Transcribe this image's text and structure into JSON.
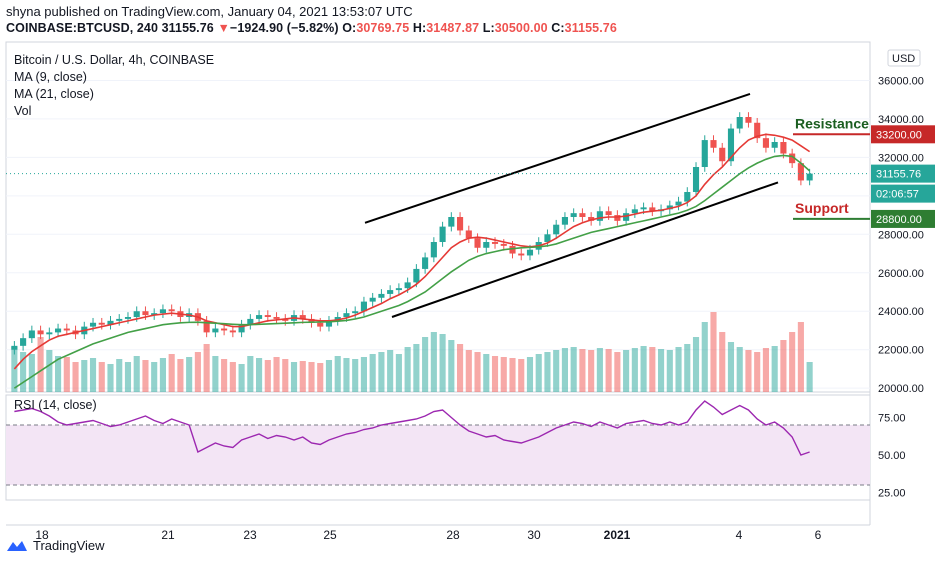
{
  "header": {
    "published": "shyna published on TradingView.com, January 04, 2021 13:53:07 UTC",
    "symbol": "COINBASE:BTCUSD, 240",
    "last": "31155.76",
    "change_arrow": "▼",
    "change": "−1924.90 (−5.82%)",
    "open_label": "O:",
    "open": "30769.75",
    "high_label": "H:",
    "high": "31487.87",
    "low_label": "L:",
    "low": "30500.00",
    "close_label": "C:",
    "close": "31155.76"
  },
  "legend": {
    "title": "Bitcoin / U.S. Dollar, 4h, COINBASE",
    "ma9": "MA (9, close)",
    "ma21": "MA (21, close)",
    "vol": "Vol",
    "rsi": "RSI (14, close)"
  },
  "footer": {
    "brand": "TradingView"
  },
  "colors": {
    "up": "#26a69a",
    "down": "#ef5350",
    "ma9": "#e53935",
    "ma21": "#43a047",
    "rsi": "#9c27b0",
    "rsi_band": "#f3e5f5",
    "annotation_resistance": "#c62828",
    "annotation_support": "#2e7d32"
  },
  "chart_data": [
    {
      "type": "candlestick",
      "title": "Bitcoin / U.S. Dollar, 4h, COINBASE",
      "currency": "USD",
      "x_ticks": [
        "18",
        "21",
        "23",
        "25",
        "28",
        "30",
        "2021",
        "4",
        "6"
      ],
      "y_ticks": [
        20000,
        22000,
        24000,
        26000,
        28000,
        30000,
        32000,
        34000,
        36000
      ],
      "y_tick_labels": [
        "20000.00",
        "22000.00",
        "24000.00",
        "26000.00",
        "28000.00",
        "30000.00",
        "32000.00",
        "34000.00",
        "36000.00"
      ],
      "ylim": [
        19800,
        38000
      ],
      "price_labels": {
        "last": "31155.76",
        "countdown": "02:06:57",
        "resistance": "33200.00",
        "support": "28800.00"
      },
      "annotations": [
        {
          "text": "Resistance",
          "value": 33200
        },
        {
          "text": "Support",
          "value": 28800
        }
      ],
      "channel": {
        "upper": [
          [
            24,
            28600
          ],
          [
            42,
            35300
          ]
        ],
        "lower": [
          [
            26,
            23700
          ],
          [
            44,
            30700
          ]
        ]
      },
      "series_close": [
        22200,
        22600,
        23000,
        22800,
        22900,
        23100,
        23000,
        22800,
        23200,
        23400,
        23300,
        23500,
        23600,
        23700,
        24000,
        23800,
        23900,
        24100,
        24000,
        23700,
        23900,
        23500,
        22900,
        23100,
        23000,
        22900,
        23300,
        23600,
        23800,
        23700,
        23600,
        23500,
        23800,
        23600,
        23400,
        23200,
        23500,
        23700,
        23900,
        24000,
        24500,
        24700,
        24900,
        25100,
        25200,
        25500,
        26200,
        26800,
        27600,
        28400,
        28900,
        28200,
        27800,
        27300,
        27600,
        27500,
        27400,
        27000,
        26900,
        27200,
        27600,
        28000,
        28500,
        28900,
        29100,
        28900,
        28700,
        29200,
        29000,
        28700,
        29100,
        29300,
        29400,
        29200,
        29300,
        29500,
        29700,
        30200,
        31500,
        32900,
        32500,
        31800,
        33500,
        34100,
        33800,
        33000,
        32500,
        32800,
        32200,
        31700,
        30800,
        31156
      ],
      "ma9_close": [
        21000,
        21500,
        21900,
        22200,
        22500,
        22700,
        22800,
        22900,
        23000,
        23100,
        23200,
        23300,
        23400,
        23500,
        23600,
        23700,
        23800,
        23850,
        23900,
        23850,
        23800,
        23700,
        23500,
        23400,
        23300,
        23200,
        23200,
        23300,
        23400,
        23500,
        23550,
        23600,
        23650,
        23600,
        23550,
        23500,
        23500,
        23550,
        23650,
        23800,
        24000,
        24200,
        24400,
        24650,
        24850,
        25100,
        25400,
        25800,
        26300,
        26800,
        27300,
        27600,
        27800,
        27850,
        27800,
        27700,
        27600,
        27500,
        27400,
        27350,
        27400,
        27550,
        27800,
        28100,
        28400,
        28600,
        28750,
        28850,
        28900,
        28900,
        28950,
        29050,
        29150,
        29200,
        29250,
        29350,
        29450,
        29650,
        30000,
        30600,
        31100,
        31500,
        32000,
        32500,
        32900,
        33100,
        33200,
        33150,
        33050,
        32900,
        32600,
        32300
      ],
      "ma21_close": [
        20000,
        20300,
        20600,
        20900,
        21200,
        21500,
        21700,
        21900,
        22100,
        22300,
        22450,
        22600,
        22750,
        22900,
        23000,
        23100,
        23200,
        23300,
        23350,
        23400,
        23420,
        23430,
        23400,
        23380,
        23350,
        23320,
        23300,
        23300,
        23320,
        23340,
        23360,
        23380,
        23400,
        23420,
        23430,
        23440,
        23450,
        23480,
        23520,
        23600,
        23700,
        23850,
        24000,
        24150,
        24300,
        24500,
        24750,
        25000,
        25350,
        25700,
        26050,
        26350,
        26650,
        26850,
        27000,
        27100,
        27200,
        27250,
        27300,
        27320,
        27350,
        27400,
        27500,
        27650,
        27800,
        27950,
        28100,
        28200,
        28300,
        28400,
        28500,
        28600,
        28700,
        28800,
        28900,
        29000,
        29100,
        29250,
        29450,
        29750,
        30100,
        30450,
        30800,
        31150,
        31450,
        31700,
        31900,
        32050,
        32100,
        32050,
        31700,
        31300
      ],
      "volume": [
        45,
        40,
        38,
        55,
        42,
        36,
        35,
        30,
        32,
        34,
        30,
        28,
        33,
        30,
        36,
        32,
        30,
        34,
        38,
        33,
        35,
        40,
        48,
        36,
        33,
        30,
        28,
        36,
        34,
        32,
        35,
        33,
        30,
        31,
        30,
        29,
        32,
        36,
        34,
        33,
        35,
        38,
        40,
        42,
        38,
        45,
        48,
        55,
        60,
        58,
        52,
        48,
        42,
        40,
        38,
        36,
        35,
        34,
        33,
        35,
        38,
        40,
        42,
        44,
        45,
        43,
        42,
        44,
        43,
        40,
        42,
        44,
        46,
        45,
        43,
        42,
        45,
        48,
        55,
        70,
        80,
        60,
        50,
        45,
        42,
        40,
        44,
        46,
        52,
        60,
        70,
        30
      ],
      "rsi": {
        "name": "RSI (14, close)",
        "levels": [
          25,
          50,
          75
        ],
        "upper_band": 70,
        "lower_band": 30,
        "ylim": [
          20,
          90
        ],
        "values": [
          79,
          80,
          81,
          79,
          76,
          72,
          70,
          71,
          72,
          73,
          71,
          69,
          70,
          72,
          74,
          76,
          73,
          71,
          74,
          72,
          70,
          52,
          55,
          58,
          56,
          55,
          60,
          62,
          64,
          61,
          63,
          62,
          60,
          62,
          58,
          57,
          60,
          62,
          64,
          65,
          67,
          68,
          70,
          71,
          72,
          73,
          74,
          76,
          79,
          80,
          75,
          70,
          66,
          64,
          62,
          63,
          60,
          59,
          58,
          60,
          62,
          65,
          68,
          70,
          72,
          71,
          69,
          72,
          70,
          68,
          71,
          72,
          73,
          71,
          70,
          72,
          70,
          72,
          80,
          86,
          82,
          77,
          80,
          83,
          80,
          74,
          70,
          72,
          68,
          62,
          50,
          52
        ]
      }
    }
  ]
}
